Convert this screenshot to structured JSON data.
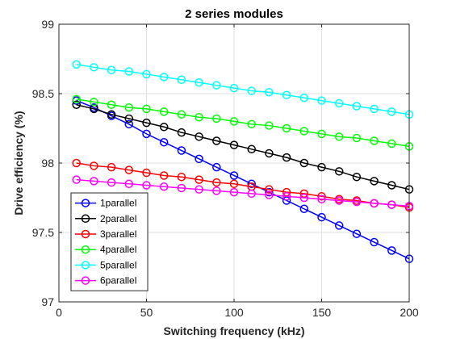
{
  "chart_data": {
    "type": "line",
    "title": "2 series modules",
    "xlabel": "Switching frequency (kHz)",
    "ylabel": "Drive efficiency (%)",
    "xlim": [
      0,
      200
    ],
    "ylim": [
      97,
      99
    ],
    "xticks": [
      0,
      50,
      100,
      150,
      200
    ],
    "yticks": [
      97,
      97.5,
      98,
      98.5,
      99
    ],
    "ytick_labels": [
      "97",
      "97.5",
      "98",
      "98.5",
      "99"
    ],
    "grid": true,
    "legend_position": "bottom-left",
    "x": [
      10,
      20,
      30,
      40,
      50,
      60,
      70,
      80,
      90,
      100,
      110,
      120,
      130,
      140,
      150,
      160,
      170,
      180,
      190,
      200
    ],
    "series": [
      {
        "name": "1parallel",
        "color": "#0000ff",
        "values": [
          98.45,
          98.4,
          98.34,
          98.28,
          98.21,
          98.15,
          98.09,
          98.03,
          97.97,
          97.91,
          97.85,
          97.79,
          97.73,
          97.67,
          97.61,
          97.55,
          97.49,
          97.43,
          97.37,
          97.31
        ]
      },
      {
        "name": "2parallel",
        "color": "#000000",
        "values": [
          98.42,
          98.39,
          98.35,
          98.32,
          98.29,
          98.26,
          98.22,
          98.19,
          98.16,
          98.13,
          98.1,
          98.07,
          98.04,
          98.0,
          97.97,
          97.94,
          97.9,
          97.87,
          97.84,
          97.81
        ]
      },
      {
        "name": "3parallel",
        "color": "#ff0000",
        "values": [
          98.0,
          97.98,
          97.97,
          97.95,
          97.93,
          97.91,
          97.9,
          97.88,
          97.86,
          97.85,
          97.83,
          97.81,
          97.79,
          97.78,
          97.76,
          97.74,
          97.73,
          97.71,
          97.7,
          97.68
        ]
      },
      {
        "name": "4parallel",
        "color": "#00ff00",
        "values": [
          98.46,
          98.44,
          98.42,
          98.4,
          98.39,
          98.37,
          98.35,
          98.33,
          98.32,
          98.3,
          98.28,
          98.27,
          98.25,
          98.23,
          98.21,
          98.19,
          98.18,
          98.16,
          98.14,
          98.12
        ]
      },
      {
        "name": "5parallel",
        "color": "#00ffff",
        "values": [
          98.71,
          98.69,
          98.67,
          98.66,
          98.64,
          98.62,
          98.6,
          98.58,
          98.56,
          98.54,
          98.52,
          98.51,
          98.49,
          98.47,
          98.45,
          98.43,
          98.41,
          98.39,
          98.37,
          98.35
        ]
      },
      {
        "name": "6parallel",
        "color": "#ff00ff",
        "values": [
          97.88,
          97.87,
          97.86,
          97.85,
          97.84,
          97.83,
          97.82,
          97.81,
          97.8,
          97.79,
          97.78,
          97.77,
          97.76,
          97.75,
          97.74,
          97.73,
          97.72,
          97.71,
          97.7,
          97.69
        ]
      }
    ]
  }
}
